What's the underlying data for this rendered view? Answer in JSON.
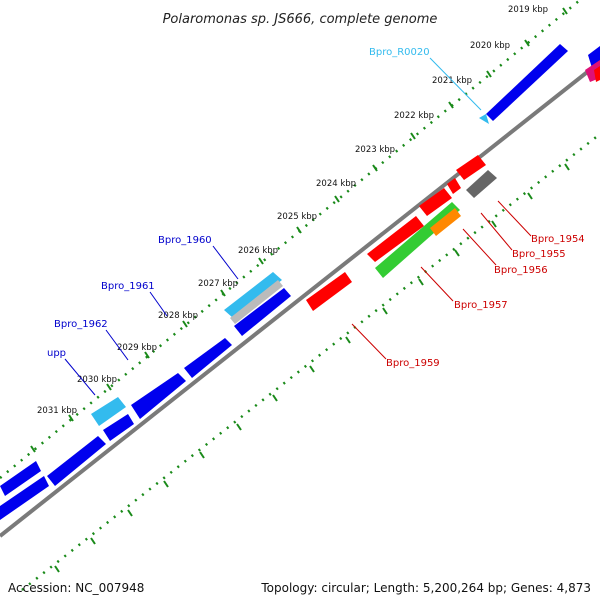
{
  "title": "Polaromonas sp. JS666, complete genome",
  "footer": {
    "accession": "Accession: NC_007948",
    "summary": "Topology: circular; Length: 5,200,264 bp; Genes: 4,873"
  },
  "ticks": [
    "2019 kbp",
    "2020 kbp",
    "2021 kbp",
    "2022 kbp",
    "2023 kbp",
    "2024 kbp",
    "2025 kbp",
    "2026 kbp",
    "2027 kbp",
    "2028 kbp",
    "2029 kbp",
    "2030 kbp",
    "2031 kbp"
  ],
  "labels": [
    {
      "text": "Bpro_R0020",
      "color": "#33bbee"
    },
    {
      "text": "Bpro_1960",
      "color": "#0000cc"
    },
    {
      "text": "Bpro_1961",
      "color": "#0000cc"
    },
    {
      "text": "Bpro_1962",
      "color": "#0000cc"
    },
    {
      "text": "upp",
      "color": "#0000cc"
    },
    {
      "text": "Bpro_1954",
      "color": "#cc0000"
    },
    {
      "text": "Bpro_1955",
      "color": "#cc0000"
    },
    {
      "text": "Bpro_1956",
      "color": "#cc0000"
    },
    {
      "text": "Bpro_1957",
      "color": "#cc0000"
    },
    {
      "text": "Bpro_1959",
      "color": "#cc0000"
    }
  ],
  "colors": {
    "backbone": "#7a7a7a",
    "tick_dots": "#1a8a1a",
    "forward_gene": "#0000ee",
    "reverse_gene": "#ff0000",
    "rna_gene": "#33bbee",
    "green_gene": "#33cc33",
    "orange_gene": "#ff8800",
    "grey_gene": "#666666",
    "magenta_gene": "#dd1177"
  }
}
